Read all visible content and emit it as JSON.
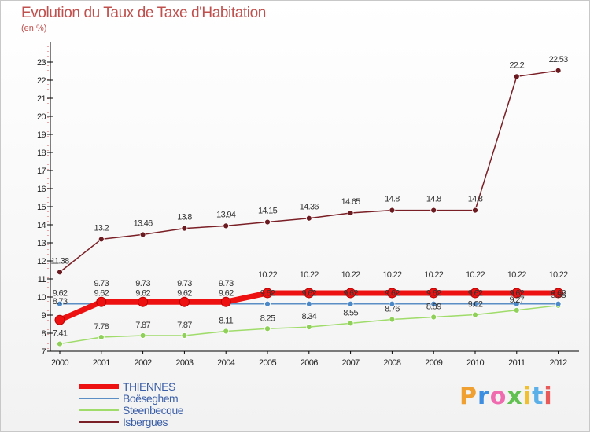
{
  "chart_data": {
    "type": "line",
    "title": "Evolution du Taux de Taxe d'Habitation",
    "subtitle": "(en %)",
    "xlabel": "",
    "ylabel": "",
    "ylim": [
      7,
      23
    ],
    "yticks": [
      7,
      8,
      9,
      10,
      11,
      12,
      13,
      14,
      15,
      16,
      17,
      18,
      19,
      20,
      21,
      22,
      23
    ],
    "grid": false,
    "legend_position": "bottom-left",
    "categories": [
      "2000",
      "2001",
      "2002",
      "2003",
      "2004",
      "2005",
      "2006",
      "2007",
      "2008",
      "2009",
      "2010",
      "2011",
      "2012"
    ],
    "series": [
      {
        "name": "THIENNES",
        "color": "#ee1111",
        "values": [
          8.73,
          9.73,
          9.73,
          9.73,
          9.73,
          10.22,
          10.22,
          10.22,
          10.22,
          10.22,
          10.22,
          10.22,
          10.22
        ],
        "labels": [
          "8.73",
          "9.73",
          "9.73",
          "9.73",
          "9.73",
          "10.22",
          "10.22",
          "10.22",
          "10.22",
          "10.22",
          "10.22",
          "10.22",
          "10.22"
        ]
      },
      {
        "name": "Boëseghem",
        "color": "#5b8ec4",
        "values": [
          9.62,
          9.62,
          9.62,
          9.62,
          9.62,
          9.62,
          9.62,
          9.62,
          9.62,
          9.62,
          9.62,
          9.62,
          9.62
        ],
        "labels": [
          "9.62",
          "9.62",
          "9.62",
          "9.62",
          "9.62",
          "9.62",
          "9.62",
          "9.62",
          "9.62",
          "9.62",
          "9.62",
          "9.62",
          "9.62"
        ]
      },
      {
        "name": "Steenbecque",
        "color": "#9fdc6a",
        "values": [
          7.41,
          7.78,
          7.87,
          7.87,
          8.11,
          8.25,
          8.34,
          8.55,
          8.76,
          8.89,
          9.02,
          9.27,
          9.53
        ],
        "labels": [
          "7.41",
          "7.78",
          "7.87",
          "7.87",
          "8.11",
          "8.25",
          "8.34",
          "8.55",
          "8.76",
          "8.89",
          "9.02",
          "9.27",
          "9.53"
        ]
      },
      {
        "name": "Isbergues",
        "color": "#7a1f25",
        "values": [
          11.38,
          13.2,
          13.46,
          13.8,
          13.94,
          14.15,
          14.36,
          14.65,
          14.8,
          14.8,
          14.8,
          22.2,
          22.53
        ],
        "labels": [
          "11.38",
          "13.2",
          "13.46",
          "13.8",
          "13.94",
          "14.15",
          "14.36",
          "14.65",
          "14.8",
          "14.8",
          "14.8",
          "22.2",
          "22.53"
        ]
      }
    ]
  },
  "logo": {
    "letters": [
      "P",
      "r",
      "o",
      "x",
      "i",
      "t",
      "i"
    ],
    "colors": [
      "#f0a030",
      "#3c8ee0",
      "#f06ab0",
      "#60c050",
      "#f0c030",
      "#5bb0e8",
      "#e85a5a"
    ]
  }
}
